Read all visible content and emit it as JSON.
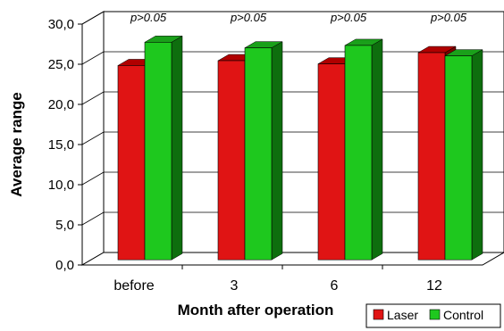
{
  "chart_data": {
    "type": "bar",
    "xlabel": "Month after operation",
    "ylabel": "Average range",
    "categories": [
      "before",
      "3",
      "6",
      "12"
    ],
    "series": [
      {
        "name": "Laser",
        "color": "#e01414",
        "top_color": "#b00000",
        "side_color": "#7a0000",
        "values": [
          24.2,
          24.8,
          24.4,
          25.8
        ]
      },
      {
        "name": "Control",
        "color": "#1ec81e",
        "top_color": "#1aa01a",
        "side_color": "#0e6e0e",
        "values": [
          27.1,
          26.4,
          26.7,
          25.4
        ]
      }
    ],
    "ylim": [
      0,
      30
    ],
    "yticks": [
      "0,0",
      "5,0",
      "10,0",
      "15,0",
      "20,0",
      "25,0",
      "30,0"
    ],
    "annotations": [
      "p>0.05",
      "p>0.05",
      "p>0.05",
      "p>0.05"
    ],
    "grid": true,
    "legend_position": "bottom-right"
  }
}
